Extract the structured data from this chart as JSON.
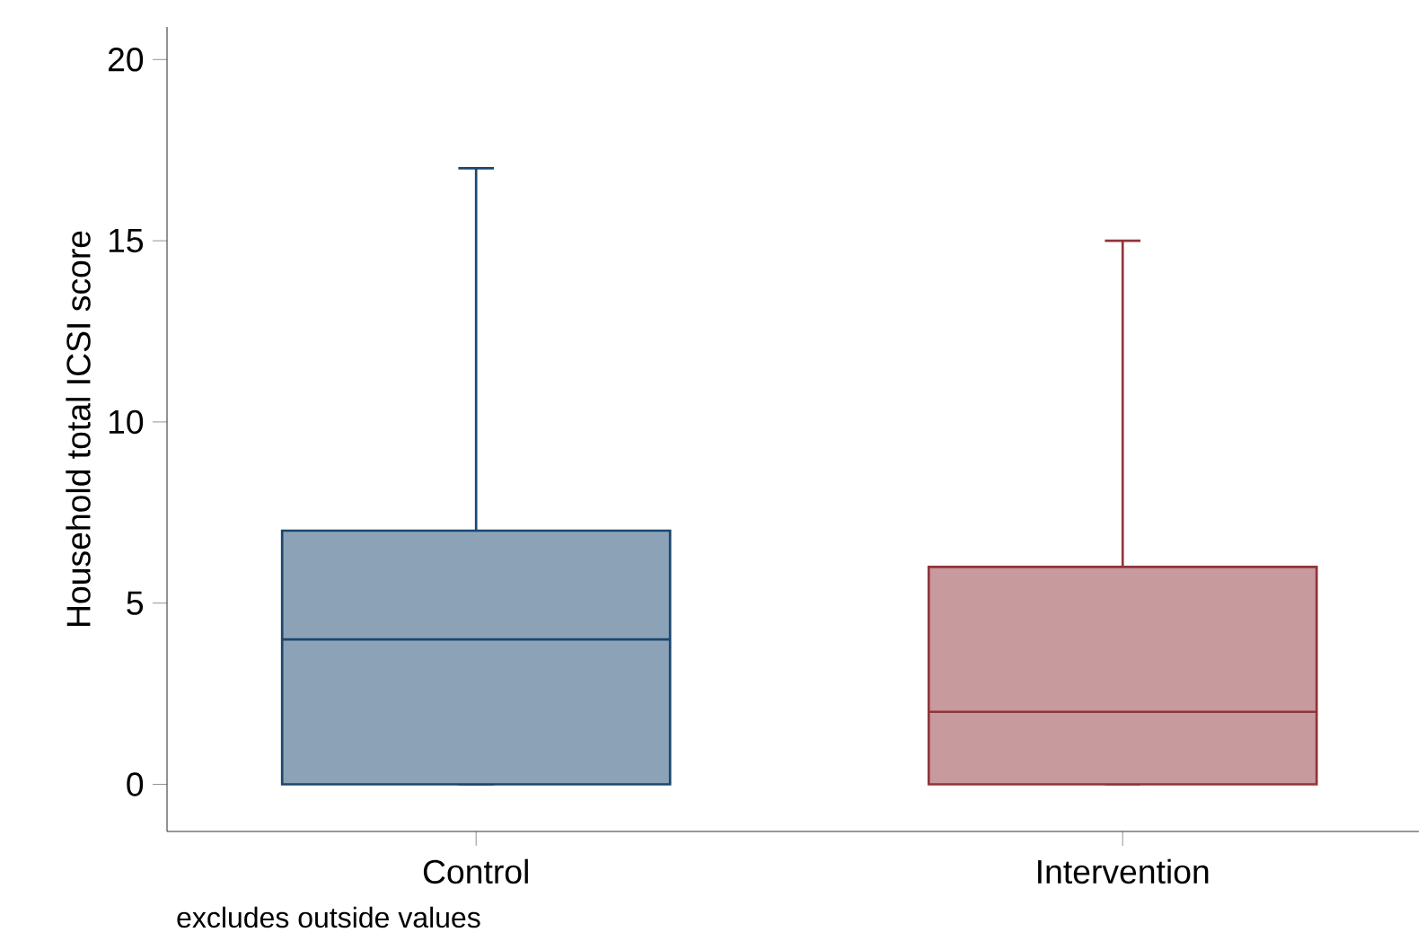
{
  "chart_data": {
    "type": "box",
    "ylabel": "Household total ICSI score",
    "categories": [
      "Control",
      "Intervention"
    ],
    "boxes": [
      {
        "low": 0,
        "q1": 0,
        "median": 4,
        "q3": 7,
        "high": 17
      },
      {
        "low": 0,
        "q1": 0,
        "median": 2,
        "q3": 6,
        "high": 15
      }
    ],
    "colors": [
      "#1a476f",
      "#90353b"
    ],
    "ylim": [
      -1.3,
      20.9
    ],
    "yticks": [
      0,
      5,
      10,
      15,
      20
    ],
    "annotations": [
      "excludes outside values"
    ]
  }
}
